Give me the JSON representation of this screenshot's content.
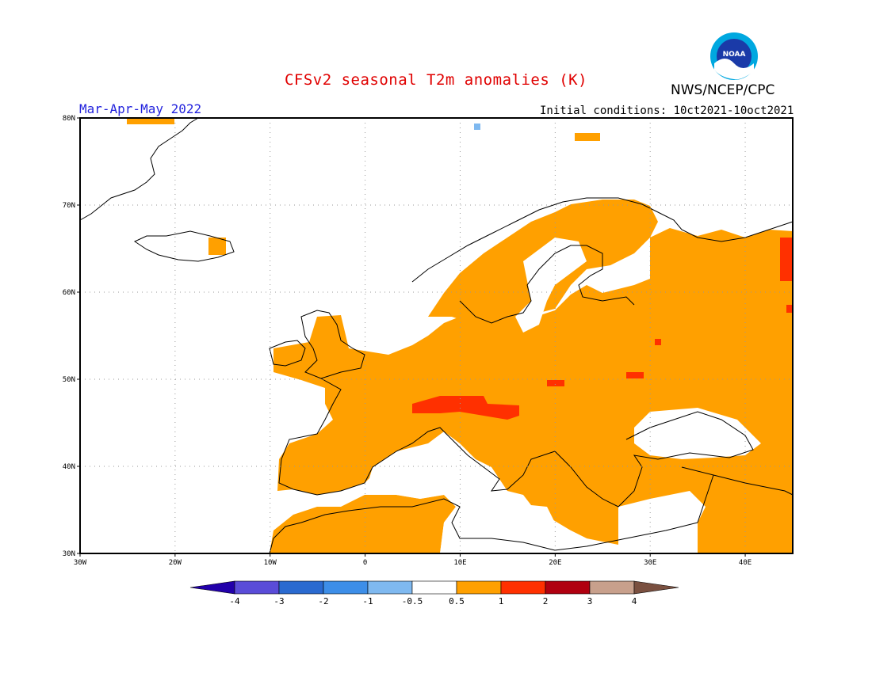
{
  "title": "CFSv2 seasonal T2m anomalies (K)",
  "agency": "NWS/NCEP/CPC",
  "logo_text": "NOAA",
  "period": "Mar-Apr-May 2022",
  "initial_conditions": "Initial conditions: 10ct2021-10oct2021",
  "map": {
    "lon_range": [
      -30,
      45
    ],
    "lat_range": [
      30,
      80
    ],
    "lat_labels": [
      "30N",
      "40N",
      "50N",
      "60N",
      "70N",
      "80N"
    ],
    "lon_labels": [
      "30W",
      "20W",
      "10W",
      "0",
      "10E",
      "20E",
      "30E",
      "40E"
    ],
    "dominant_anomaly_category": "0.5 to 1",
    "hotspots": [
      {
        "region": "Alps",
        "category": "1 to 2"
      },
      {
        "region": "Northwest Russia",
        "category": "1 to 2"
      }
    ]
  },
  "colorbar": {
    "labels": [
      "-4",
      "-3",
      "-2",
      "-1",
      "-0.5",
      "0.5",
      "1",
      "2",
      "3",
      "4"
    ],
    "colors": [
      "#2200aa",
      "#5a4cd8",
      "#2a6ad0",
      "#3d8ee8",
      "#7fb9f0",
      "#ffffff",
      "#ffa000",
      "#ff3000",
      "#b00010",
      "#c8a08c",
      "#7a5040"
    ]
  }
}
